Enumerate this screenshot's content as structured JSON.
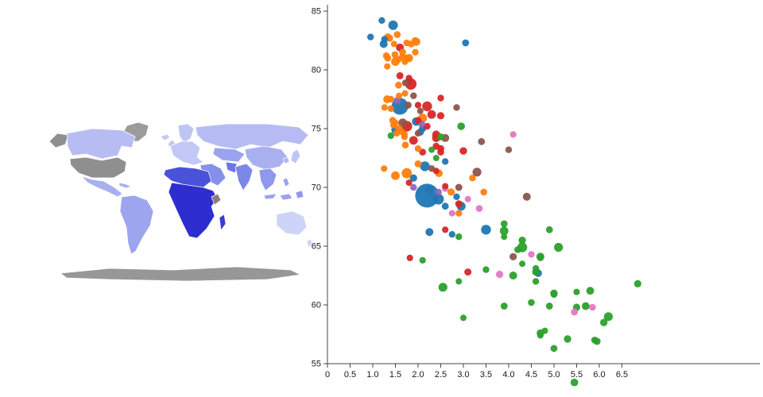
{
  "map": {
    "regions": {
      "greenland": "#9b9b9b",
      "alaska": "#8f8f8f",
      "canada": "#b7bdf3",
      "usa": "#8f8f8f",
      "mexico": "#a9b0f0",
      "caribbean": "#a9b0f0",
      "south-america": "#9ca5ee",
      "antarctica": "#979797",
      "iceland": "#c4c9f6",
      "uk": "#c0c5f5",
      "scandinavia": "#bec4f4",
      "europe": "#c2c7f5",
      "russia": "#b6bcf3",
      "central-asia": "#9aa3ee",
      "middle-east": "#8690ea",
      "north-africa": "#4a52da",
      "sub-saharan-africa": "#2e2ed0",
      "east-africa-patch": "#8a8078",
      "madagascar": "#3a3ad4",
      "pakistan": "#6b76e4",
      "india": "#7d87e8",
      "china": "#a9b0f0",
      "korea": "#b0b6f1",
      "japan": "#c0c5f5",
      "southeast-asia": "#8f98ec",
      "philippines": "#99a2ee",
      "indonesia-west": "#99a2ee",
      "indonesia-east": "#99a2ee",
      "new-guinea": "#8f98ec",
      "australia": "#ced3f8",
      "new-zealand": "#ced3f8"
    }
  },
  "chart_data": {
    "type": "scatter",
    "title": "",
    "xlabel": "",
    "ylabel": "",
    "xlim": [
      0,
      7
    ],
    "ylim": [
      55,
      85
    ],
    "grid": false,
    "legend": "none",
    "axis_color": "#444444",
    "label_color": "#1a1a1a",
    "x_ticks": [
      0,
      0.5,
      1.0,
      1.5,
      2.0,
      2.5,
      3.0,
      3.5,
      4.0,
      4.5,
      5.0,
      5.5,
      6.0,
      6.5
    ],
    "x_tick_labels": [
      "0",
      "0.5",
      "1.0",
      "1.5",
      "2.0",
      "2.5",
      "3.0",
      "3.5",
      "4.0",
      "4.5",
      "5.0",
      "5.5",
      "6.0",
      "6.5"
    ],
    "y_ticks": [
      55,
      60,
      65,
      70,
      75,
      80,
      85
    ],
    "y_tick_labels": [
      "55",
      "60",
      "65",
      "70",
      "75",
      "80",
      "85"
    ],
    "palette": [
      "#1f77b4",
      "#ff7f0e",
      "#2ca02c",
      "#d62728",
      "#9467bd",
      "#8c564b",
      "#e377c2"
    ],
    "point_format": [
      "x_fertility",
      "y_life_expectancy",
      "radius_px",
      "color_index"
    ],
    "points": [
      [
        0.95,
        82.8,
        4.2,
        0
      ],
      [
        1.2,
        84.2,
        4.2,
        0
      ],
      [
        1.24,
        82.2,
        5.0,
        0
      ],
      [
        1.26,
        82.6,
        4.2,
        0
      ],
      [
        1.45,
        83.8,
        6.0,
        0
      ],
      [
        3.05,
        82.3,
        4.4,
        0
      ],
      [
        1.6,
        76.9,
        10.5,
        0
      ],
      [
        1.5,
        74.9,
        5.2,
        0
      ],
      [
        1.96,
        75.6,
        5.4,
        0
      ],
      [
        1.9,
        70.8,
        4.6,
        0
      ],
      [
        2.1,
        75.0,
        4.4,
        0
      ],
      [
        2.05,
        74.7,
        4.6,
        0
      ],
      [
        2.45,
        69.0,
        6.8,
        0
      ],
      [
        2.2,
        69.3,
        15.0,
        0
      ],
      [
        2.15,
        71.8,
        6.2,
        0
      ],
      [
        2.25,
        69.8,
        4.6,
        0
      ],
      [
        2.25,
        66.2,
        5.0,
        0
      ],
      [
        2.6,
        68.4,
        4.4,
        0
      ],
      [
        2.75,
        66.0,
        4.2,
        0
      ],
      [
        2.95,
        68.4,
        5.6,
        0
      ],
      [
        3.5,
        66.4,
        6.2,
        0
      ],
      [
        4.65,
        62.7,
        4.8,
        0
      ],
      [
        2.85,
        69.2,
        4.2,
        0
      ],
      [
        2.6,
        72.2,
        4.2,
        0
      ],
      [
        1.33,
        82.8,
        4.6,
        1
      ],
      [
        1.37,
        82.7,
        4.6,
        1
      ],
      [
        1.96,
        82.4,
        5.2,
        1
      ],
      [
        1.54,
        83.0,
        4.3,
        1
      ],
      [
        1.93,
        82.5,
        4.1,
        1
      ],
      [
        1.85,
        82.2,
        4.4,
        1
      ],
      [
        1.75,
        82.3,
        4.3,
        1
      ],
      [
        1.94,
        81.5,
        4.2,
        1
      ],
      [
        1.8,
        81.0,
        5.2,
        1
      ],
      [
        1.5,
        80.7,
        5.4,
        1
      ],
      [
        1.66,
        81.5,
        4.4,
        1
      ],
      [
        1.49,
        81.3,
        4.3,
        1
      ],
      [
        1.74,
        81.0,
        4.4,
        1
      ],
      [
        1.3,
        81.2,
        4.3,
        1
      ],
      [
        1.33,
        81.0,
        4.3,
        1
      ],
      [
        1.65,
        81.1,
        4.2,
        1
      ],
      [
        1.71,
        80.7,
        4.2,
        1
      ],
      [
        1.57,
        80.9,
        4.1,
        1
      ],
      [
        1.47,
        82.2,
        4.0,
        1
      ],
      [
        1.32,
        80.3,
        4.0,
        1
      ],
      [
        1.57,
        78.7,
        4.4,
        1
      ],
      [
        1.32,
        77.5,
        5.0,
        1
      ],
      [
        1.58,
        77.8,
        4.0,
        1
      ],
      [
        1.4,
        77.5,
        4.2,
        1
      ],
      [
        1.4,
        76.7,
        4.2,
        1
      ],
      [
        1.44,
        75.7,
        4.3,
        1
      ],
      [
        1.7,
        74.5,
        4.1,
        1
      ],
      [
        1.7,
        74.3,
        4.1,
        1
      ],
      [
        1.58,
        75.0,
        4.5,
        1
      ],
      [
        1.53,
        74.6,
        4.2,
        1
      ],
      [
        1.46,
        75.3,
        4.2,
        1
      ],
      [
        1.26,
        76.8,
        4.1,
        1
      ],
      [
        1.71,
        78.0,
        4.1,
        1
      ],
      [
        1.5,
        75.5,
        4.0,
        1
      ],
      [
        1.72,
        73.6,
        4.3,
        1
      ],
      [
        1.75,
        71.2,
        6.4,
        1
      ],
      [
        1.5,
        71.0,
        5.4,
        1
      ],
      [
        1.25,
        71.6,
        4.1,
        1
      ],
      [
        2.0,
        73.3,
        4.2,
        1
      ],
      [
        1.65,
        74.7,
        4.1,
        1
      ],
      [
        2.0,
        72.0,
        4.4,
        1
      ],
      [
        2.73,
        69.6,
        4.6,
        1
      ],
      [
        2.46,
        71.2,
        4.8,
        1
      ],
      [
        2.9,
        67.8,
        4.2,
        1
      ],
      [
        3.2,
        70.8,
        4.2,
        1
      ],
      [
        3.45,
        69.6,
        4.3,
        1
      ],
      [
        2.1,
        75.9,
        5.6,
        1
      ],
      [
        1.4,
        74.4,
        4.2,
        2
      ],
      [
        2.3,
        73.2,
        4.0,
        2
      ],
      [
        2.4,
        72.5,
        4.0,
        2
      ],
      [
        2.9,
        65.8,
        4.2,
        2
      ],
      [
        2.55,
        61.5,
        5.6,
        2
      ],
      [
        3.5,
        63.0,
        4.2,
        2
      ],
      [
        3.9,
        59.9,
        4.4,
        2
      ],
      [
        5.0,
        61.0,
        4.6,
        2
      ],
      [
        4.6,
        62.8,
        4.6,
        2
      ],
      [
        5.3,
        57.1,
        4.7,
        2
      ],
      [
        4.3,
        65.5,
        4.6,
        2
      ],
      [
        5.1,
        64.9,
        5.6,
        2
      ],
      [
        3.9,
        66.3,
        5.4,
        2
      ],
      [
        5.7,
        59.9,
        4.9,
        2
      ],
      [
        3.9,
        66.9,
        4.4,
        2
      ],
      [
        5.9,
        57.0,
        4.4,
        2
      ],
      [
        4.3,
        64.9,
        6.2,
        2
      ],
      [
        4.2,
        64.7,
        4.3,
        2
      ],
      [
        4.7,
        64.1,
        5.0,
        2
      ],
      [
        5.0,
        56.3,
        4.4,
        2
      ],
      [
        6.85,
        61.8,
        4.6,
        2
      ],
      [
        5.95,
        56.9,
        4.5,
        2
      ],
      [
        6.1,
        58.5,
        4.7,
        2
      ],
      [
        5.5,
        59.8,
        4.6,
        2
      ],
      [
        4.9,
        66.4,
        4.4,
        2
      ],
      [
        4.9,
        59.9,
        4.4,
        2
      ],
      [
        4.8,
        57.8,
        4.0,
        2
      ],
      [
        4.6,
        62.0,
        4.2,
        2
      ],
      [
        4.1,
        62.5,
        5.0,
        2
      ],
      [
        4.5,
        60.2,
        4.3,
        2
      ],
      [
        5.0,
        60.9,
        4.4,
        2
      ],
      [
        4.7,
        57.6,
        4.7,
        2
      ],
      [
        3.9,
        65.8,
        4.0,
        2
      ],
      [
        4.7,
        64.0,
        4.2,
        2
      ],
      [
        6.2,
        59.0,
        5.6,
        2
      ],
      [
        5.8,
        61.2,
        4.9,
        2
      ],
      [
        4.7,
        57.4,
        4.0,
        2
      ],
      [
        5.5,
        61.1,
        4.1,
        2
      ],
      [
        4.6,
        63.1,
        4.2,
        2
      ],
      [
        3.0,
        58.9,
        4.0,
        2
      ],
      [
        4.3,
        63.5,
        4.0,
        2
      ],
      [
        2.9,
        62.0,
        4.0,
        2
      ],
      [
        2.1,
        63.8,
        4.1,
        2
      ],
      [
        2.95,
        75.2,
        4.8,
        2
      ],
      [
        2.5,
        74.3,
        4.4,
        2
      ],
      [
        5.45,
        53.4,
        4.8,
        2
      ],
      [
        1.6,
        81.9,
        5.0,
        3
      ],
      [
        1.84,
        78.8,
        7.2,
        3
      ],
      [
        1.6,
        79.5,
        4.5,
        3
      ],
      [
        1.8,
        79.0,
        4.7,
        3
      ],
      [
        1.8,
        79.3,
        4.2,
        3
      ],
      [
        2.5,
        77.6,
        4.2,
        3
      ],
      [
        2.2,
        76.9,
        6.2,
        3
      ],
      [
        2.0,
        77.0,
        4.2,
        3
      ],
      [
        2.3,
        76.2,
        5.4,
        3
      ],
      [
        1.75,
        75.2,
        6.8,
        3
      ],
      [
        1.9,
        74.0,
        5.4,
        3
      ],
      [
        2.4,
        74.5,
        5.0,
        3
      ],
      [
        2.5,
        76.1,
        4.6,
        3
      ],
      [
        2.4,
        74.2,
        5.2,
        3
      ],
      [
        2.5,
        73.0,
        4.3,
        3
      ],
      [
        2.4,
        73.5,
        4.4,
        3
      ],
      [
        2.0,
        75.7,
        4.2,
        3
      ],
      [
        1.8,
        70.4,
        4.1,
        3
      ],
      [
        2.1,
        73.0,
        4.3,
        3
      ],
      [
        2.2,
        75.2,
        4.3,
        3
      ],
      [
        2.5,
        73.3,
        4.4,
        3
      ],
      [
        3.0,
        73.1,
        4.7,
        3
      ],
      [
        2.6,
        70.1,
        4.0,
        3
      ],
      [
        2.6,
        66.4,
        4.1,
        3
      ],
      [
        2.4,
        71.4,
        4.0,
        3
      ],
      [
        2.9,
        68.6,
        4.5,
        3
      ],
      [
        3.1,
        62.8,
        4.5,
        3
      ],
      [
        1.82,
        64.0,
        4.1,
        3
      ],
      [
        1.54,
        77.4,
        4.4,
        4
      ],
      [
        2.08,
        75.4,
        4.3,
        4
      ],
      [
        1.9,
        70.0,
        4.2,
        4
      ],
      [
        2.45,
        69.6,
        4.2,
        4
      ],
      [
        1.66,
        75.5,
        5.4,
        5
      ],
      [
        3.3,
        71.3,
        5.6,
        5
      ],
      [
        4.4,
        69.2,
        5.0,
        5
      ],
      [
        3.4,
        73.9,
        4.4,
        5
      ],
      [
        4.0,
        73.2,
        4.2,
        5
      ],
      [
        4.1,
        64.1,
        4.6,
        5
      ],
      [
        2.9,
        70.0,
        4.5,
        5
      ],
      [
        2.3,
        71.6,
        4.2,
        5
      ],
      [
        1.72,
        78.9,
        4.2,
        5
      ],
      [
        2.6,
        74.2,
        5.0,
        5
      ],
      [
        2.85,
        76.8,
        4.2,
        5
      ],
      [
        2.0,
        74.6,
        4.2,
        5
      ],
      [
        1.78,
        77.0,
        4.4,
        5
      ],
      [
        1.9,
        77.8,
        4.2,
        5
      ],
      [
        2.05,
        76.5,
        4.0,
        5
      ],
      [
        2.6,
        69.9,
        4.2,
        6
      ],
      [
        3.1,
        69.0,
        4.0,
        6
      ],
      [
        3.35,
        68.2,
        4.3,
        6
      ],
      [
        3.8,
        62.6,
        4.6,
        6
      ],
      [
        4.1,
        74.5,
        4.1,
        6
      ],
      [
        4.5,
        64.3,
        4.2,
        6
      ],
      [
        5.45,
        59.4,
        4.4,
        6
      ],
      [
        5.85,
        59.8,
        4.3,
        6
      ],
      [
        2.75,
        67.8,
        4.1,
        6
      ]
    ]
  }
}
